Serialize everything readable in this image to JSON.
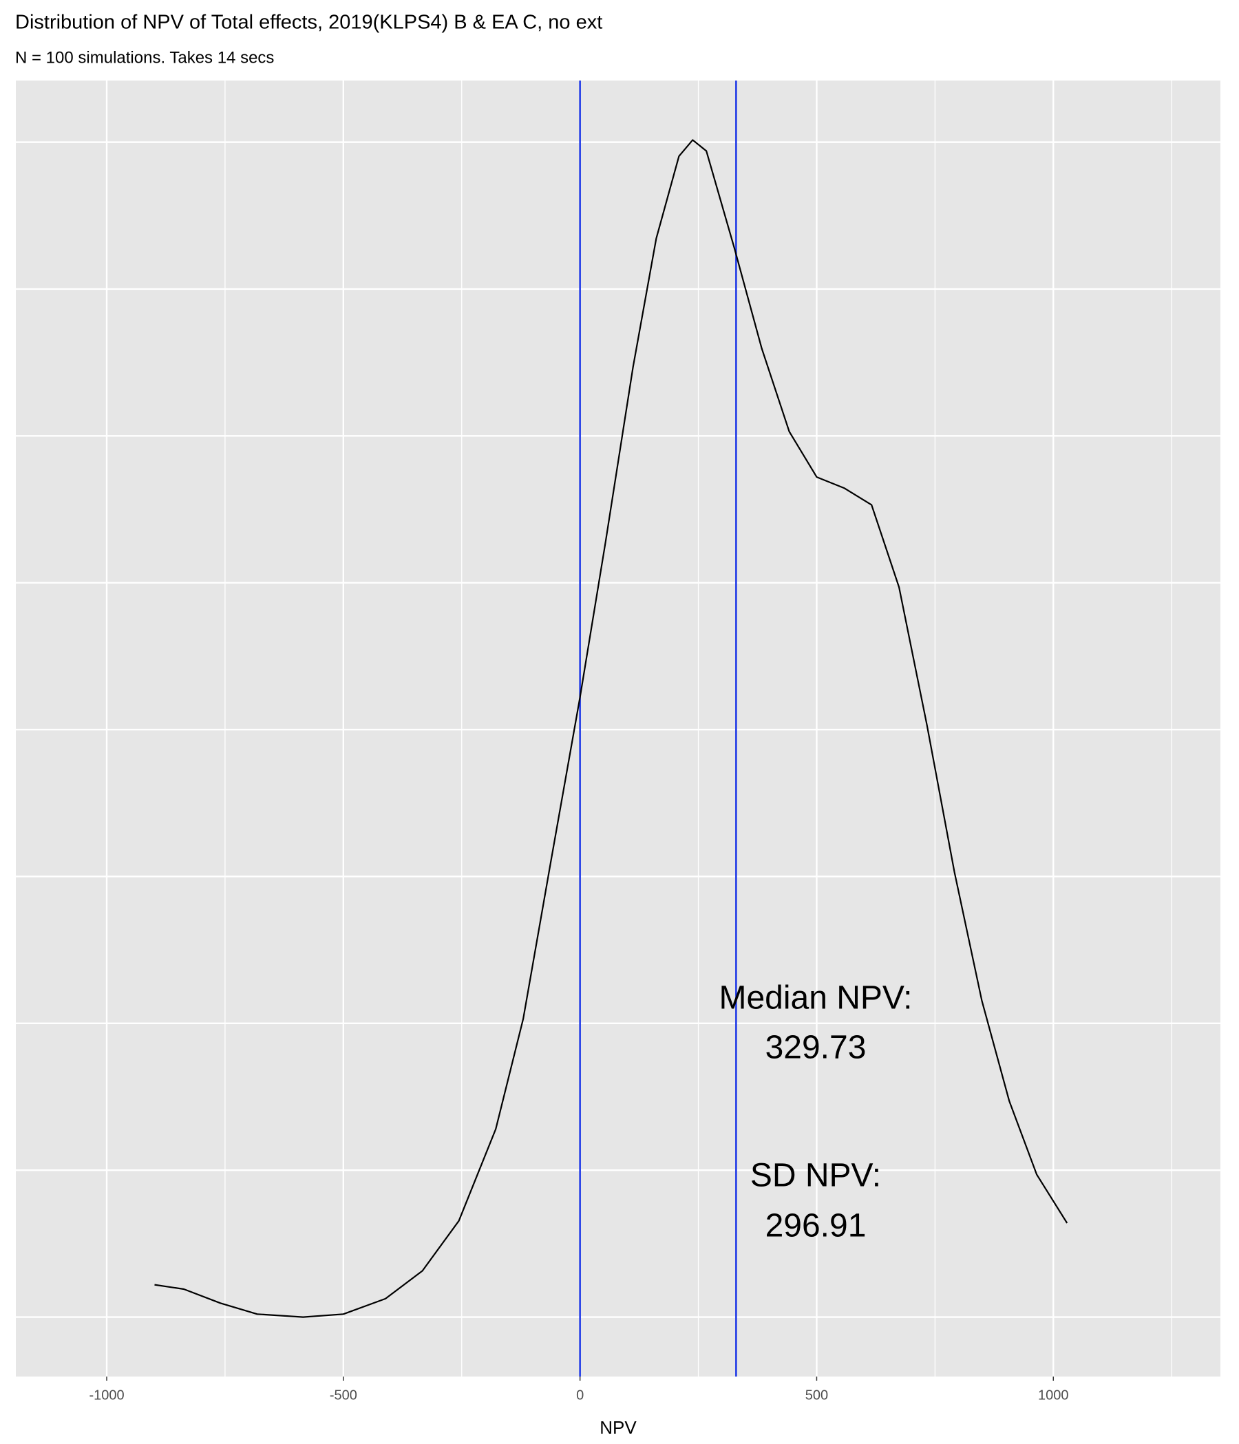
{
  "chart_data": {
    "type": "line",
    "title": "Distribution of NPV of Total effects, 2019(KLPS4) B & EA C, no ext",
    "subtitle": "N = 100 simulations. Takes 14 secs",
    "x_label": "NPV",
    "x": [
      -899,
      -837,
      -760,
      -682,
      -585,
      -500,
      -411,
      -333,
      -256,
      -178,
      -120,
      -62,
      0,
      54,
      112,
      161,
      209,
      238,
      267,
      326,
      384,
      442,
      500,
      558,
      616,
      674,
      733,
      791,
      849,
      907,
      965,
      1029
    ],
    "values": [
      4.4e-05,
      3.8e-05,
      1.9e-05,
      4e-06,
      0,
      4e-06,
      2.5e-05,
      6.3e-05,
      0.000131,
      0.000256,
      0.000406,
      0.000619,
      0.000844,
      0.001056,
      0.001294,
      0.001469,
      0.001581,
      0.001603,
      0.001588,
      0.001456,
      0.001319,
      0.001206,
      0.001144,
      0.001129,
      0.001106,
      0.000994,
      0.000806,
      0.000606,
      0.000431,
      0.000294,
      0.000194,
      0.000128
    ],
    "color": "#000000",
    "xlim": [
      -1192,
      1353
    ],
    "ylim": [
      -8.1e-05,
      0.001684
    ],
    "xticks": [
      -1000,
      -500,
      0,
      500,
      1000
    ],
    "x_minor_ticks": [
      -750,
      -250,
      250,
      750,
      1250
    ],
    "yticks": [
      0,
      0.0002,
      0.0004,
      0.0006,
      0.0008,
      0.001,
      0.0012,
      0.0014,
      0.0016
    ],
    "grid": true,
    "vlines": [
      0,
      329.73
    ],
    "vline_color": "#1a35e6",
    "annotations": [
      "Median NPV:",
      "329.73",
      "SD NPV:",
      "296.91"
    ]
  }
}
